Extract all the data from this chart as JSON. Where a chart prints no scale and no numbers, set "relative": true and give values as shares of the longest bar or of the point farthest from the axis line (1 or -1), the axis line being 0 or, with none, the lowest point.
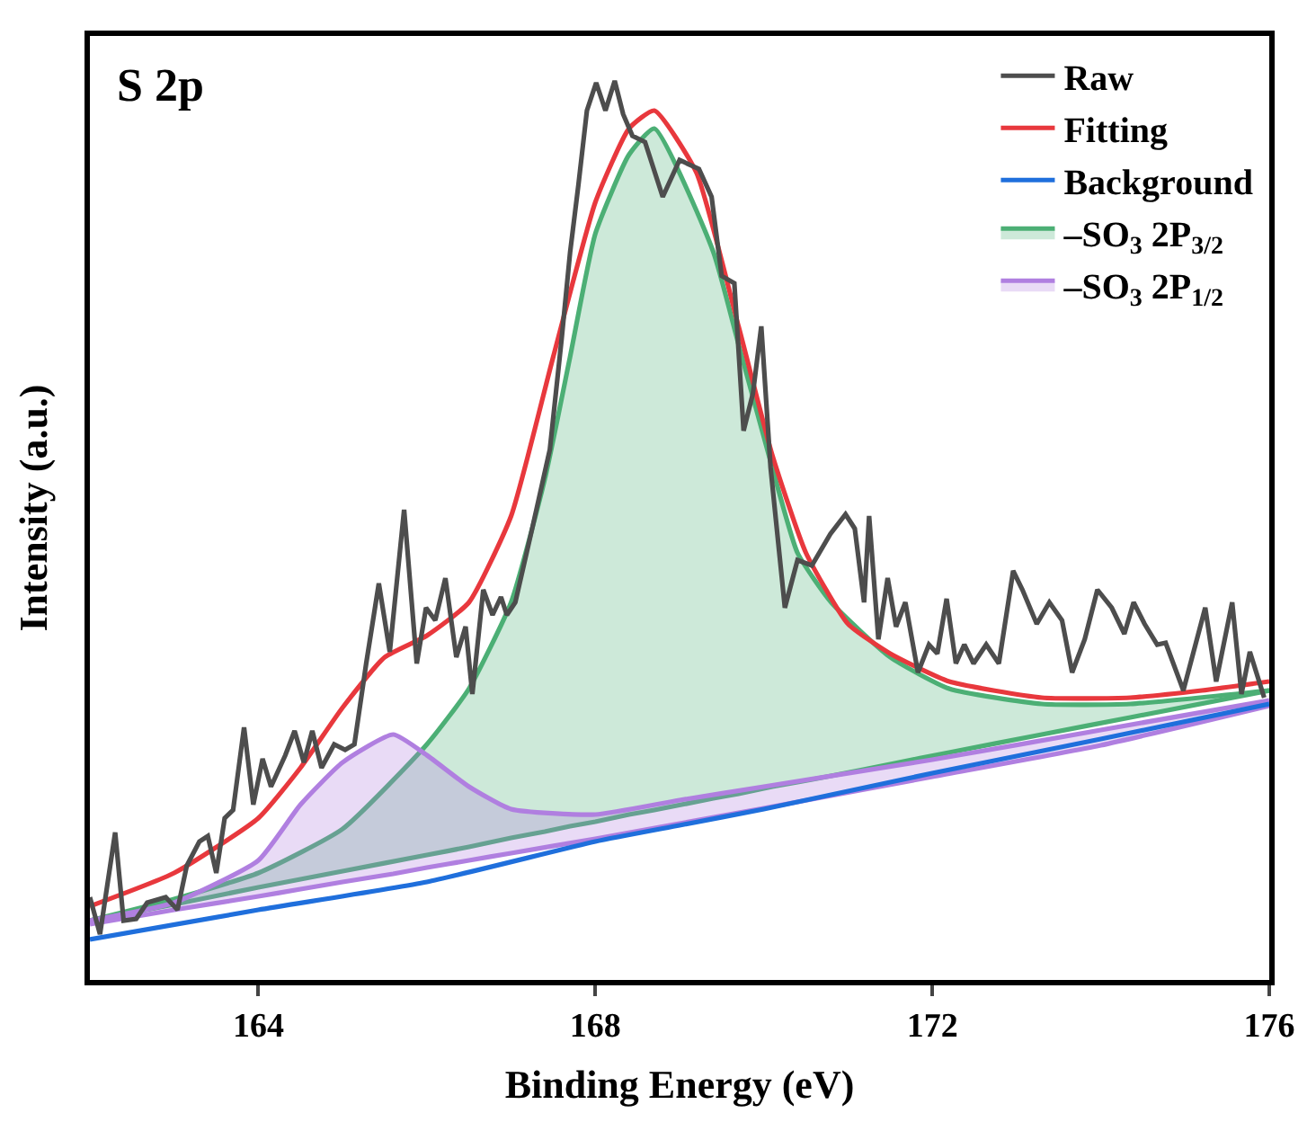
{
  "chart_data": {
    "type": "line",
    "relative": true,
    "xlabel": "Binding Energy (eV)",
    "ylabel": "Intensity (a.u.)",
    "annotations": [
      "S 2p"
    ],
    "xlim": [
      162,
      176
    ],
    "xticks": [
      164,
      168,
      172,
      176
    ],
    "tick_labels": "x",
    "legend": "top right",
    "marker": "none",
    "line_style": "solid",
    "series": [
      {
        "color": "#4caf75",
        "x": [
          162,
          163,
          164,
          165,
          166,
          166.5,
          167,
          167.4,
          167.7,
          168,
          168.4,
          168.7,
          169.4,
          169.7,
          170.1,
          170.4,
          170.8,
          171.5,
          172.2,
          173.3,
          174.35,
          176
        ],
        "values": [
          0.066,
          0.084,
          0.103,
          0.121,
          0.139,
          0.148,
          0.158,
          0.165,
          0.171,
          0.176,
          0.184,
          0.189,
          0.202,
          0.207,
          0.215,
          0.22,
          0.227,
          0.24,
          0.253,
          0.273,
          0.292,
          0.322
        ]
      },
      {
        "name": "–SO$_{3}$ 2P$_{3/2}$",
        "type": "area",
        "color": "#4caf75",
        "x": [
          162,
          163,
          164,
          165,
          166,
          166.5,
          167,
          167.4,
          167.7,
          168,
          168.4,
          168.7,
          169.4,
          169.7,
          170.1,
          170.4,
          170.8,
          171.5,
          172.2,
          173.3,
          174.35,
          176
        ],
        "values": [
          0.066,
          0.09,
          0.119,
          0.168,
          0.262,
          0.324,
          0.42,
          0.557,
          0.693,
          0.83,
          0.918,
          0.947,
          0.81,
          0.707,
          0.57,
          0.475,
          0.42,
          0.359,
          0.324,
          0.307,
          0.307,
          0.322
        ]
      },
      {
        "color": "#b07fe0",
        "x": [
          162,
          163,
          164,
          164.5,
          165,
          165.6,
          166,
          166.5,
          167,
          168,
          169,
          170,
          172,
          174,
          176
        ],
        "values": [
          0.062,
          0.078,
          0.093,
          0.101,
          0.109,
          0.118,
          0.125,
          0.133,
          0.141,
          0.157,
          0.174,
          0.191,
          0.226,
          0.261,
          0.305
        ]
      },
      {
        "name": "–SO$_{3}$ 2P$_{1/2}$",
        "type": "area",
        "color": "#b07fe0",
        "x": [
          162,
          163,
          164,
          164.5,
          165,
          165.6,
          166,
          166.5,
          167,
          168,
          169,
          170,
          172,
          174,
          176
        ],
        "values": [
          0.066,
          0.086,
          0.133,
          0.195,
          0.242,
          0.273,
          0.25,
          0.215,
          0.19,
          0.184,
          0.2,
          0.215,
          0.245,
          0.278,
          0.311
        ]
      },
      {
        "name": "Background",
        "type": "line",
        "color": "#1f6fdc",
        "x": [
          162,
          164,
          166,
          168,
          169,
          170,
          172,
          174,
          176
        ],
        "values": [
          0.045,
          0.078,
          0.109,
          0.154,
          0.172,
          0.19,
          0.23,
          0.268,
          0.307
        ]
      },
      {
        "name": "Fitting",
        "type": "line",
        "color": "#e8383d",
        "x": [
          162,
          163,
          164,
          164.5,
          165,
          165.5,
          166,
          166.5,
          167,
          167.5,
          168,
          168.4,
          168.7,
          169.2,
          169.7,
          170.1,
          170.5,
          171,
          171.5,
          172.2,
          173.3,
          174.35,
          175.2,
          176
        ],
        "values": [
          0.082,
          0.119,
          0.18,
          0.236,
          0.303,
          0.359,
          0.383,
          0.42,
          0.516,
          0.693,
          0.865,
          0.947,
          0.967,
          0.898,
          0.727,
          0.584,
          0.475,
          0.396,
          0.363,
          0.332,
          0.314,
          0.314,
          0.322,
          0.332
        ]
      },
      {
        "name": "Raw",
        "type": "line",
        "color": "#4d4d4d",
        "x": [
          162.0,
          162.12,
          162.3,
          162.4,
          162.55,
          162.68,
          162.9,
          163.04,
          163.15,
          163.3,
          163.4,
          163.5,
          163.6,
          163.7,
          163.83,
          163.94,
          164.05,
          164.15,
          164.32,
          164.43,
          164.54,
          164.64,
          164.75,
          164.9,
          165.03,
          165.14,
          165.28,
          165.43,
          165.56,
          165.73,
          165.88,
          165.99,
          166.1,
          166.22,
          166.35,
          166.46,
          166.54,
          166.67,
          166.78,
          166.88,
          166.95,
          167.05,
          167.25,
          167.46,
          167.6,
          167.7,
          167.8,
          167.9,
          168.01,
          168.12,
          168.23,
          168.33,
          168.44,
          168.59,
          168.8,
          169.0,
          169.23,
          169.38,
          169.5,
          169.65,
          169.76,
          169.87,
          169.97,
          170.08,
          170.25,
          170.4,
          170.57,
          170.79,
          170.97,
          171.08,
          171.19,
          171.25,
          171.36,
          171.47,
          171.57,
          171.68,
          171.83,
          171.96,
          172.06,
          172.17,
          172.28,
          172.38,
          172.49,
          172.64,
          172.79,
          172.96,
          173.07,
          173.24,
          173.39,
          173.54,
          173.66,
          173.81,
          173.96,
          174.13,
          174.28,
          174.39,
          174.52,
          174.67,
          174.77,
          174.98,
          175.24,
          175.37,
          175.56,
          175.67,
          175.77,
          175.94
        ],
        "values": [
          0.092,
          0.051,
          0.164,
          0.066,
          0.068,
          0.086,
          0.092,
          0.078,
          0.127,
          0.154,
          0.16,
          0.119,
          0.18,
          0.189,
          0.281,
          0.195,
          0.246,
          0.215,
          0.25,
          0.277,
          0.242,
          0.277,
          0.236,
          0.262,
          0.256,
          0.262,
          0.352,
          0.441,
          0.365,
          0.523,
          0.352,
          0.414,
          0.4,
          0.447,
          0.359,
          0.393,
          0.318,
          0.434,
          0.406,
          0.426,
          0.406,
          0.42,
          0.502,
          0.59,
          0.713,
          0.809,
          0.885,
          0.967,
          0.998,
          0.967,
          1.0,
          0.963,
          0.939,
          0.932,
          0.871,
          0.912,
          0.902,
          0.871,
          0.783,
          0.775,
          0.611,
          0.652,
          0.727,
          0.57,
          0.414,
          0.467,
          0.461,
          0.496,
          0.518,
          0.502,
          0.42,
          0.516,
          0.379,
          0.447,
          0.393,
          0.42,
          0.342,
          0.373,
          0.363,
          0.424,
          0.352,
          0.373,
          0.352,
          0.373,
          0.352,
          0.455,
          0.434,
          0.396,
          0.42,
          0.4,
          0.342,
          0.379,
          0.434,
          0.414,
          0.385,
          0.42,
          0.396,
          0.373,
          0.375,
          0.322,
          0.414,
          0.332,
          0.42,
          0.318,
          0.365,
          0.314
        ]
      }
    ]
  }
}
